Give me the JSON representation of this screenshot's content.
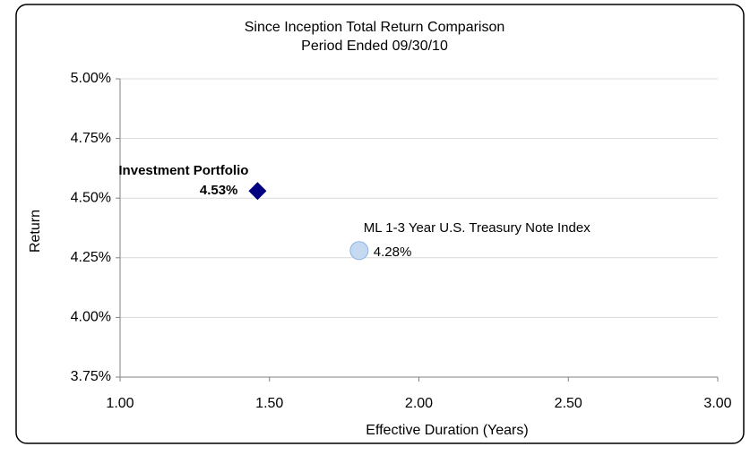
{
  "chart_data": {
    "type": "scatter",
    "title": "Since Inception Total Return Comparison",
    "subtitle": "Period Ended 09/30/10",
    "x_label": "Effective Duration (Years)",
    "y_label": "Return",
    "xlim": [
      1.0,
      3.0
    ],
    "xticks": [
      {
        "value": 1.0,
        "label": "1.00"
      },
      {
        "value": 1.5,
        "label": "1.50"
      },
      {
        "value": 2.0,
        "label": "2.00"
      },
      {
        "value": 2.5,
        "label": "2.50"
      },
      {
        "value": 3.0,
        "label": "3.00"
      }
    ],
    "ylim": [
      3.75,
      5.0
    ],
    "yticks": [
      {
        "value": 3.75,
        "label": "3.75%"
      },
      {
        "value": 4.0,
        "label": "4.00%"
      },
      {
        "value": 4.25,
        "label": "4.25%"
      },
      {
        "value": 4.5,
        "label": "4.50%"
      },
      {
        "value": 4.75,
        "label": "4.75%"
      },
      {
        "value": 5.0,
        "label": "5.00%"
      }
    ],
    "grid": true,
    "series": [
      {
        "name": "Investment Portfolio",
        "color": "#000080",
        "marker": "diamond",
        "x": [
          1.46
        ],
        "values": [
          4.53
        ],
        "value_labels": [
          "4.53%"
        ]
      },
      {
        "name": "ML 1-3 Year U.S. Treasury Note Index",
        "color": "#c5d9f1",
        "marker": "circle",
        "x": [
          1.8
        ],
        "values": [
          4.28
        ],
        "value_labels": [
          "4.28%"
        ]
      }
    ]
  }
}
